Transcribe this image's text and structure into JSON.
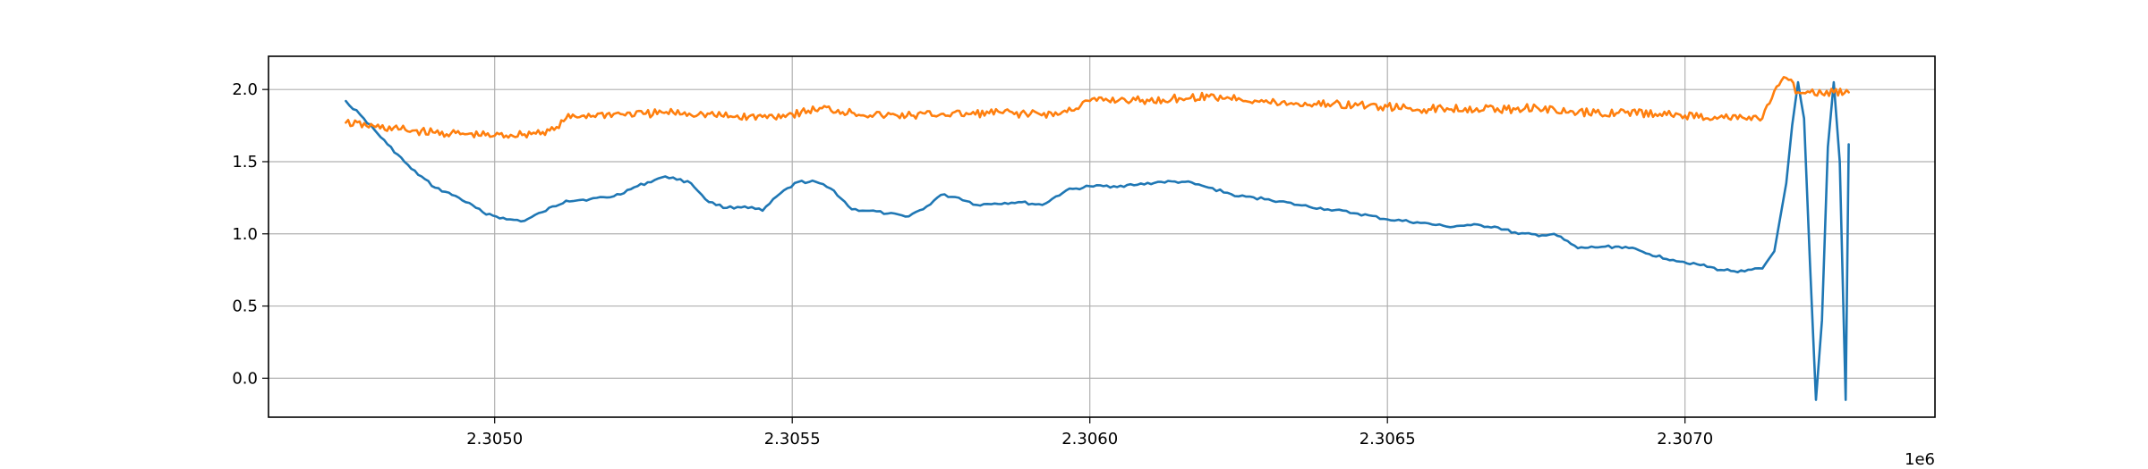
{
  "chart_data": {
    "type": "line",
    "title": "",
    "xlabel": "",
    "ylabel": "",
    "x_offset_label": "1e6",
    "xlim": [
      2.30462,
      2.30742
    ],
    "ylim": [
      -0.27,
      2.23
    ],
    "grid": true,
    "x_ticks": [
      2.305,
      2.3055,
      2.306,
      2.3065,
      2.307
    ],
    "x_tick_labels": [
      "2.3050",
      "2.3055",
      "2.3060",
      "2.3065",
      "2.3070"
    ],
    "y_ticks": [
      0.0,
      0.5,
      1.0,
      1.5,
      2.0
    ],
    "y_tick_labels": [
      "0.0",
      "0.5",
      "1.0",
      "1.5",
      "2.0"
    ],
    "series": [
      {
        "color": "#1f77b4",
        "x": [
          2.30475,
          2.30478,
          2.30482,
          2.30486,
          2.3049,
          2.30494,
          2.30498,
          2.30502,
          2.30505,
          2.30508,
          2.30512,
          2.30516,
          2.3052,
          2.30524,
          2.30528,
          2.3053,
          2.30533,
          2.30536,
          2.30539,
          2.30542,
          2.30545,
          2.30548,
          2.30551,
          2.30554,
          2.30557,
          2.3056,
          2.30563,
          2.30566,
          2.30569,
          2.30572,
          2.30575,
          2.30578,
          2.30581,
          2.30584,
          2.30588,
          2.30592,
          2.30596,
          2.306,
          2.30604,
          2.30608,
          2.30612,
          2.30616,
          2.3062,
          2.30625,
          2.3063,
          2.30635,
          2.3064,
          2.30645,
          2.3065,
          2.30655,
          2.3066,
          2.30664,
          2.30668,
          2.30672,
          2.30676,
          2.30678,
          2.30682,
          2.30686,
          2.3069,
          2.30694,
          2.30698,
          2.30702,
          2.30706,
          2.3071,
          2.30713,
          2.30715,
          2.30717,
          2.30718,
          2.30719,
          2.3072,
          2.30721,
          2.30722,
          2.30723,
          2.30724,
          2.30725,
          2.30726,
          2.30727,
          2.307275
        ],
        "y": [
          1.92,
          1.8,
          1.62,
          1.45,
          1.32,
          1.25,
          1.15,
          1.1,
          1.09,
          1.15,
          1.23,
          1.24,
          1.26,
          1.33,
          1.39,
          1.39,
          1.35,
          1.22,
          1.18,
          1.19,
          1.16,
          1.28,
          1.36,
          1.36,
          1.3,
          1.17,
          1.16,
          1.14,
          1.12,
          1.17,
          1.27,
          1.25,
          1.2,
          1.21,
          1.22,
          1.2,
          1.3,
          1.33,
          1.33,
          1.34,
          1.36,
          1.36,
          1.32,
          1.26,
          1.24,
          1.2,
          1.17,
          1.14,
          1.1,
          1.08,
          1.05,
          1.06,
          1.05,
          1.0,
          0.99,
          1.0,
          0.9,
          0.91,
          0.91,
          0.86,
          0.82,
          0.79,
          0.75,
          0.74,
          0.76,
          0.88,
          1.35,
          1.75,
          2.05,
          1.8,
          0.8,
          -0.15,
          0.4,
          1.6,
          2.05,
          1.5,
          -0.15,
          1.62
        ]
      },
      {
        "color": "#ff7f0e",
        "x": [
          2.30475,
          2.3048,
          2.30485,
          2.3049,
          2.30495,
          2.305,
          2.30505,
          2.3051,
          2.30512,
          2.30515,
          2.3052,
          2.30525,
          2.3053,
          2.30535,
          2.3054,
          2.30545,
          2.3055,
          2.30555,
          2.3056,
          2.30565,
          2.3057,
          2.30575,
          2.3058,
          2.30585,
          2.3059,
          2.30595,
          2.306,
          2.30605,
          2.3061,
          2.30615,
          2.3062,
          2.30625,
          2.3063,
          2.30635,
          2.3064,
          2.30645,
          2.3065,
          2.30655,
          2.3066,
          2.30665,
          2.3067,
          2.30675,
          2.3068,
          2.30685,
          2.3069,
          2.30695,
          2.307,
          2.30705,
          2.3071,
          2.30713,
          2.30715,
          2.30717,
          2.30719,
          2.30721,
          2.30723,
          2.30725,
          2.307275
        ],
        "y": [
          1.77,
          1.74,
          1.72,
          1.7,
          1.69,
          1.68,
          1.69,
          1.72,
          1.8,
          1.82,
          1.83,
          1.83,
          1.84,
          1.83,
          1.81,
          1.81,
          1.83,
          1.87,
          1.84,
          1.82,
          1.82,
          1.83,
          1.83,
          1.84,
          1.83,
          1.83,
          1.92,
          1.93,
          1.92,
          1.94,
          1.95,
          1.94,
          1.91,
          1.9,
          1.9,
          1.89,
          1.88,
          1.86,
          1.87,
          1.87,
          1.86,
          1.88,
          1.84,
          1.84,
          1.84,
          1.83,
          1.82,
          1.81,
          1.8,
          1.8,
          1.99,
          2.08,
          1.98,
          1.98,
          1.97,
          1.98,
          1.98
        ]
      }
    ]
  }
}
